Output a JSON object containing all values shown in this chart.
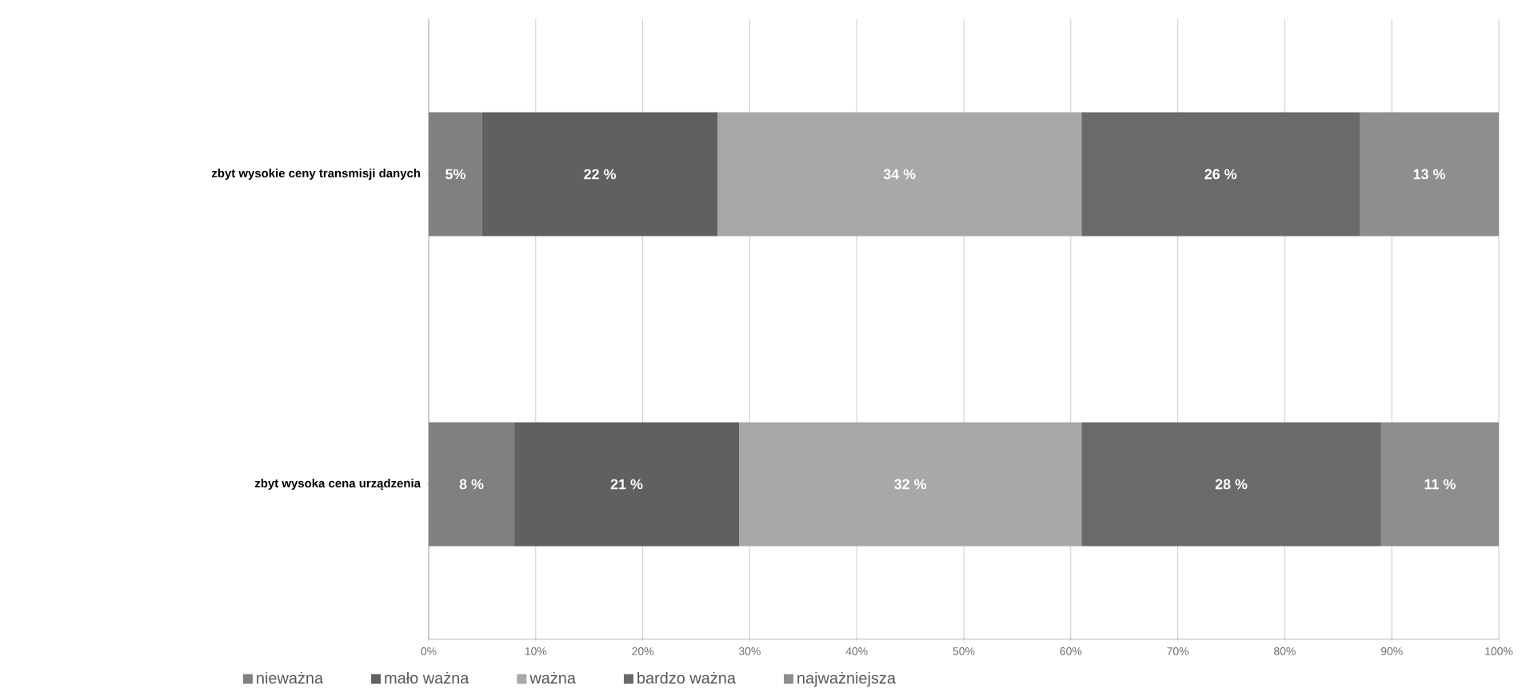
{
  "chart_data": {
    "type": "bar",
    "orientation": "horizontal",
    "stacked": true,
    "categories": [
      "zbyt wysokie ceny transmisji danych",
      "zbyt wysoka cena urządzenia"
    ],
    "series": [
      {
        "name": "nieważna",
        "color": "#808080",
        "values": [
          5,
          8
        ],
        "value_labels": [
          "5%",
          "8 %"
        ]
      },
      {
        "name": "mało ważna",
        "color": "#606060",
        "values": [
          22,
          21
        ],
        "value_labels": [
          "22 %",
          "21 %"
        ]
      },
      {
        "name": "ważna",
        "color": "#a8a8a8",
        "values": [
          34,
          32
        ],
        "value_labels": [
          "34 %",
          "32 %"
        ]
      },
      {
        "name": "bardzo ważna",
        "color": "#6a6a6a",
        "values": [
          26,
          28
        ],
        "value_labels": [
          "26 %",
          "28 %"
        ]
      },
      {
        "name": "najważniejsza",
        "color": "#8e8e8e",
        "values": [
          13,
          11
        ],
        "value_labels": [
          "13 %",
          "11 %"
        ]
      }
    ],
    "xlim": [
      0,
      100
    ],
    "xticks": [
      {
        "value": 0,
        "label": "0%"
      },
      {
        "value": 10,
        "label": "10%"
      },
      {
        "value": 20,
        "label": "20%"
      },
      {
        "value": 30,
        "label": "30%"
      },
      {
        "value": 40,
        "label": "40%"
      },
      {
        "value": 50,
        "label": "50%"
      },
      {
        "value": 60,
        "label": "60%"
      },
      {
        "value": 70,
        "label": "70%"
      },
      {
        "value": 80,
        "label": "80%"
      },
      {
        "value": 90,
        "label": "90%"
      },
      {
        "value": 100,
        "label": "100%"
      }
    ],
    "grid": "x",
    "legend": "bottom"
  }
}
